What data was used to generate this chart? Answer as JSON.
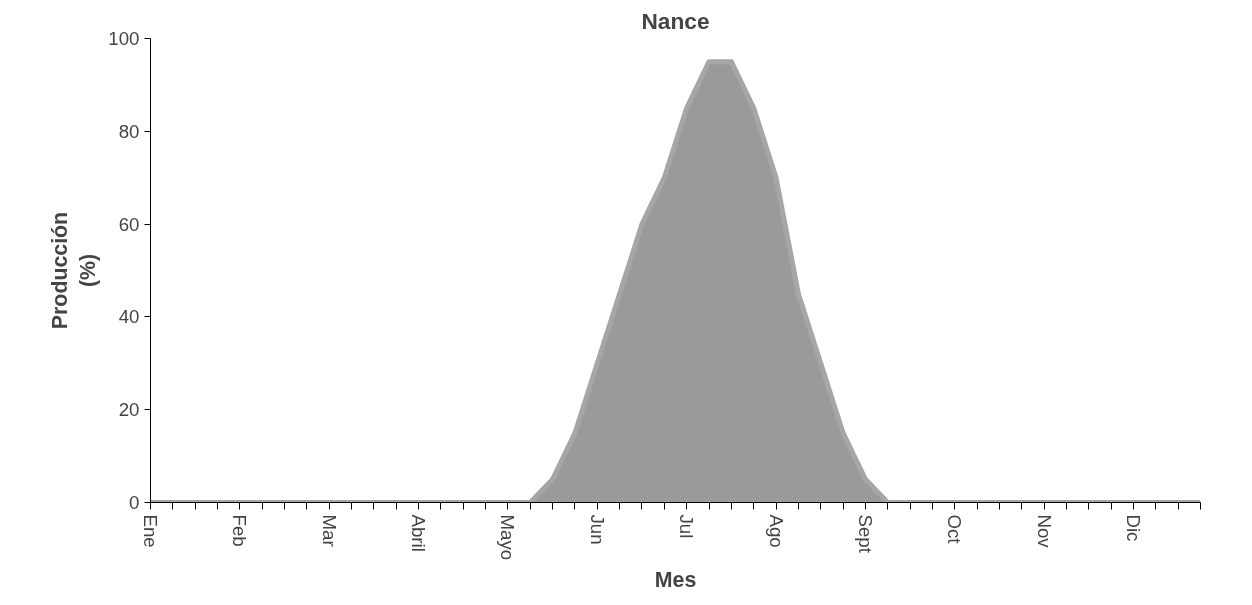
{
  "chart_data": {
    "type": "area",
    "title": "Nance",
    "xlabel": "Mes",
    "ylabel": "Producción\n(%)",
    "categories": [
      "Ene",
      null,
      null,
      null,
      "Feb",
      null,
      null,
      null,
      "Mar",
      null,
      null,
      null,
      "Abril",
      null,
      null,
      null,
      "Mayo",
      null,
      null,
      null,
      "Jun",
      null,
      null,
      null,
      "Jul",
      null,
      null,
      null,
      "Ago",
      null,
      null,
      null,
      "Sept",
      null,
      null,
      null,
      "Oct",
      null,
      null,
      null,
      "Nov",
      null,
      null,
      null,
      "Dic",
      null,
      null,
      null
    ],
    "series": [
      {
        "color": "#a6a6a6",
        "values": [
          0,
          0,
          0,
          0,
          0,
          0,
          0,
          0,
          0,
          0,
          0,
          0,
          0,
          0,
          0,
          0,
          0,
          0,
          5,
          15,
          30,
          45,
          60,
          70,
          85,
          95,
          95,
          85,
          70,
          45,
          30,
          15,
          5,
          0,
          0,
          0,
          0,
          0,
          0,
          0,
          0,
          0,
          0,
          0,
          0,
          0,
          0,
          0
        ]
      }
    ],
    "ylim": [
      0,
      100
    ],
    "yticks": [
      0,
      20,
      40,
      60,
      80,
      100
    ],
    "grid": false
  }
}
